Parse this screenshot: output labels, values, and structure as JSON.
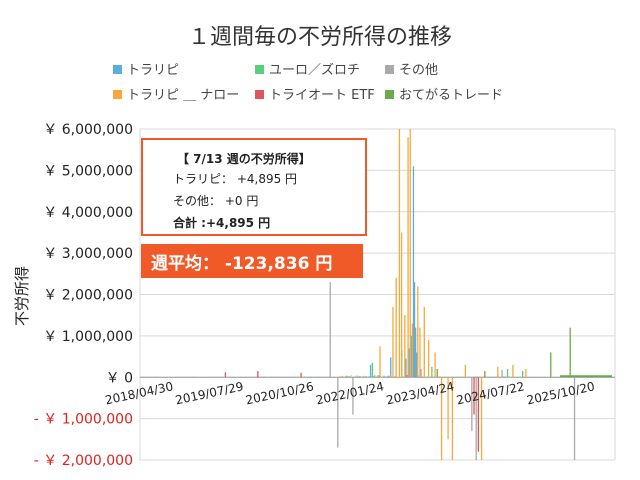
{
  "chart_data": {
    "type": "bar",
    "title": "１週間毎の不労所得の推移",
    "ylabel": "不労所得",
    "ylim": [
      -2000000,
      6000000
    ],
    "y_ticks": [
      {
        "value": 6000000,
        "label": "￥ 6,000,000"
      },
      {
        "value": 5000000,
        "label": "￥ 5,000,000"
      },
      {
        "value": 4000000,
        "label": "￥ 4,000,000"
      },
      {
        "value": 3000000,
        "label": "￥ 3,000,000"
      },
      {
        "value": 2000000,
        "label": "￥ 2,000,000"
      },
      {
        "value": 1000000,
        "label": "￥ 1,000,000"
      },
      {
        "value": 0,
        "label": "￥ 0"
      },
      {
        "value": -1000000,
        "label": "- ￥ 1,000,000"
      },
      {
        "value": -2000000,
        "label": "- ￥ 2,000,000"
      }
    ],
    "x_ticks": [
      "2018/04/30",
      "2019/07/29",
      "2020/10/26",
      "2022/01/24",
      "2023/04/24",
      "2024/07/22",
      "2025/10/20"
    ],
    "x_range": [
      "2018/04/30",
      "2026/10/01"
    ],
    "grid": true,
    "legend_position": "top",
    "series": [
      {
        "name": "トラリピ",
        "color": "#5aaee0",
        "spikes": [
          {
            "date": "2022/06/01",
            "value": 300000
          },
          {
            "date": "2022/10/10",
            "value": 480000
          },
          {
            "date": "2022/12/20",
            "value": 650000
          },
          {
            "date": "2023/01/16",
            "value": 450000
          },
          {
            "date": "2023/02/06",
            "value": 700000
          },
          {
            "date": "2023/02/20",
            "value": 1000000
          },
          {
            "date": "2023/03/06",
            "value": 5100000
          },
          {
            "date": "2023/03/13",
            "value": 2300000
          },
          {
            "date": "2023/03/20",
            "value": 1200000
          },
          {
            "date": "2023/03/27",
            "value": 600000
          }
        ]
      },
      {
        "name": "ユーロ／ズロチ",
        "color": "#57cf7c",
        "spikes": [
          {
            "date": "2022/06/13",
            "value": 350000
          },
          {
            "date": "2023/07/03",
            "value": 250000
          },
          {
            "date": "2024/11/04",
            "value": 200000
          },
          {
            "date": "2025/02/10",
            "value": 150000
          }
        ]
      },
      {
        "name": "その他",
        "color": "#a9a9a9",
        "spikes": [
          {
            "date": "2021/09/13",
            "value": 2300000
          },
          {
            "date": "2021/11/01",
            "value": -1700000
          },
          {
            "date": "2022/02/07",
            "value": -900000
          },
          {
            "date": "2023/04/24",
            "value": 200000
          },
          {
            "date": "2024/03/18",
            "value": -1300000
          },
          {
            "date": "2024/04/15",
            "value": -2000000
          },
          {
            "date": "2026/01/12",
            "value": -2000000
          },
          {
            "date": "2024/09/30",
            "value": 180000
          }
        ]
      },
      {
        "name": "トラリピ ＿ ナロー",
        "color": "#f7a83c",
        "spikes": [
          {
            "date": "2022/08/01",
            "value": 750000
          },
          {
            "date": "2022/10/24",
            "value": 1700000
          },
          {
            "date": "2022/11/14",
            "value": 2400000
          },
          {
            "date": "2022/12/05",
            "value": 6000000
          },
          {
            "date": "2022/12/19",
            "value": 3500000
          },
          {
            "date": "2023/01/09",
            "value": 1500000
          },
          {
            "date": "2023/01/30",
            "value": 5800000
          },
          {
            "date": "2023/02/13",
            "value": 6000000
          },
          {
            "date": "2023/02/27",
            "value": 1300000
          },
          {
            "date": "2023/04/03",
            "value": 2200000
          },
          {
            "date": "2023/04/17",
            "value": 1200000
          },
          {
            "date": "2023/05/15",
            "value": 1700000
          },
          {
            "date": "2023/06/12",
            "value": 900000
          },
          {
            "date": "2023/07/24",
            "value": 600000
          },
          {
            "date": "2023/09/04",
            "value": -2000000
          },
          {
            "date": "2023/10/16",
            "value": -1500000
          },
          {
            "date": "2023/11/13",
            "value": -2000000
          },
          {
            "date": "2024/02/05",
            "value": 300000
          },
          {
            "date": "2024/05/20",
            "value": -2000000
          },
          {
            "date": "2024/09/02",
            "value": 250000
          },
          {
            "date": "2024/12/09",
            "value": 300000
          },
          {
            "date": "2025/03/03",
            "value": 200000
          }
        ]
      },
      {
        "name": "トライオート ETF",
        "color": "#e0555a",
        "spikes": [
          {
            "date": "2019/11/04",
            "value": 120000
          },
          {
            "date": "2020/06/01",
            "value": 150000
          },
          {
            "date": "2021/03/08",
            "value": 110000
          },
          {
            "date": "2024/04/01",
            "value": -900000
          },
          {
            "date": "2024/04/29",
            "value": -1800000
          }
        ]
      },
      {
        "name": "おてがるトレード",
        "color": "#6aab4f",
        "spikes": [
          {
            "date": "2023/08/07",
            "value": 200000
          },
          {
            "date": "2024/06/10",
            "value": 150000
          },
          {
            "date": "2025/08/11",
            "value": 600000
          },
          {
            "date": "2025/12/15",
            "value": 1200000
          }
        ]
      }
    ]
  },
  "info_box": {
    "title": "【 7/13 週の不労所得】",
    "line1": "トラリピ：  +4,895 円",
    "line2": "その他：  +0 円",
    "line3": "合計 :+4,895 円"
  },
  "average_box": {
    "text": "週平均：  -123,836 円"
  }
}
